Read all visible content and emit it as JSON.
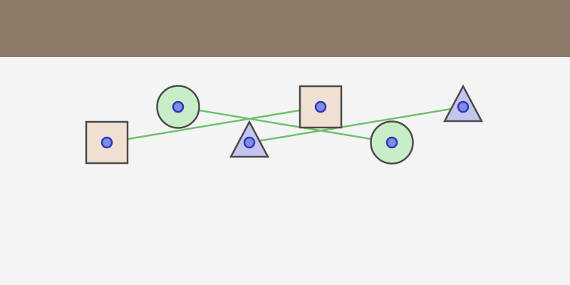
{
  "colors": {
    "header_bar": "#8c7a67",
    "background": "#f4f4f4",
    "square_fill": "#f0e0d2",
    "circle_fill": "#c8eec8",
    "triangle_fill": "#c4c4ee",
    "shape_stroke": "#4a4a4a",
    "anchor_fill": "#7f8ed6",
    "anchor_stroke": "#2e35c6",
    "connector": "#6cc06c"
  },
  "nodes": [
    {
      "id": "square-left",
      "shape": "square"
    },
    {
      "id": "circle-left",
      "shape": "circle"
    },
    {
      "id": "triangle-center",
      "shape": "triangle"
    },
    {
      "id": "square-center",
      "shape": "square"
    },
    {
      "id": "circle-right",
      "shape": "circle"
    },
    {
      "id": "triangle-right",
      "shape": "triangle"
    }
  ],
  "links": [
    {
      "from": "square-left",
      "to": "square-center"
    },
    {
      "from": "circle-left",
      "to": "circle-right"
    },
    {
      "from": "triangle-center",
      "to": "triangle-right"
    }
  ]
}
